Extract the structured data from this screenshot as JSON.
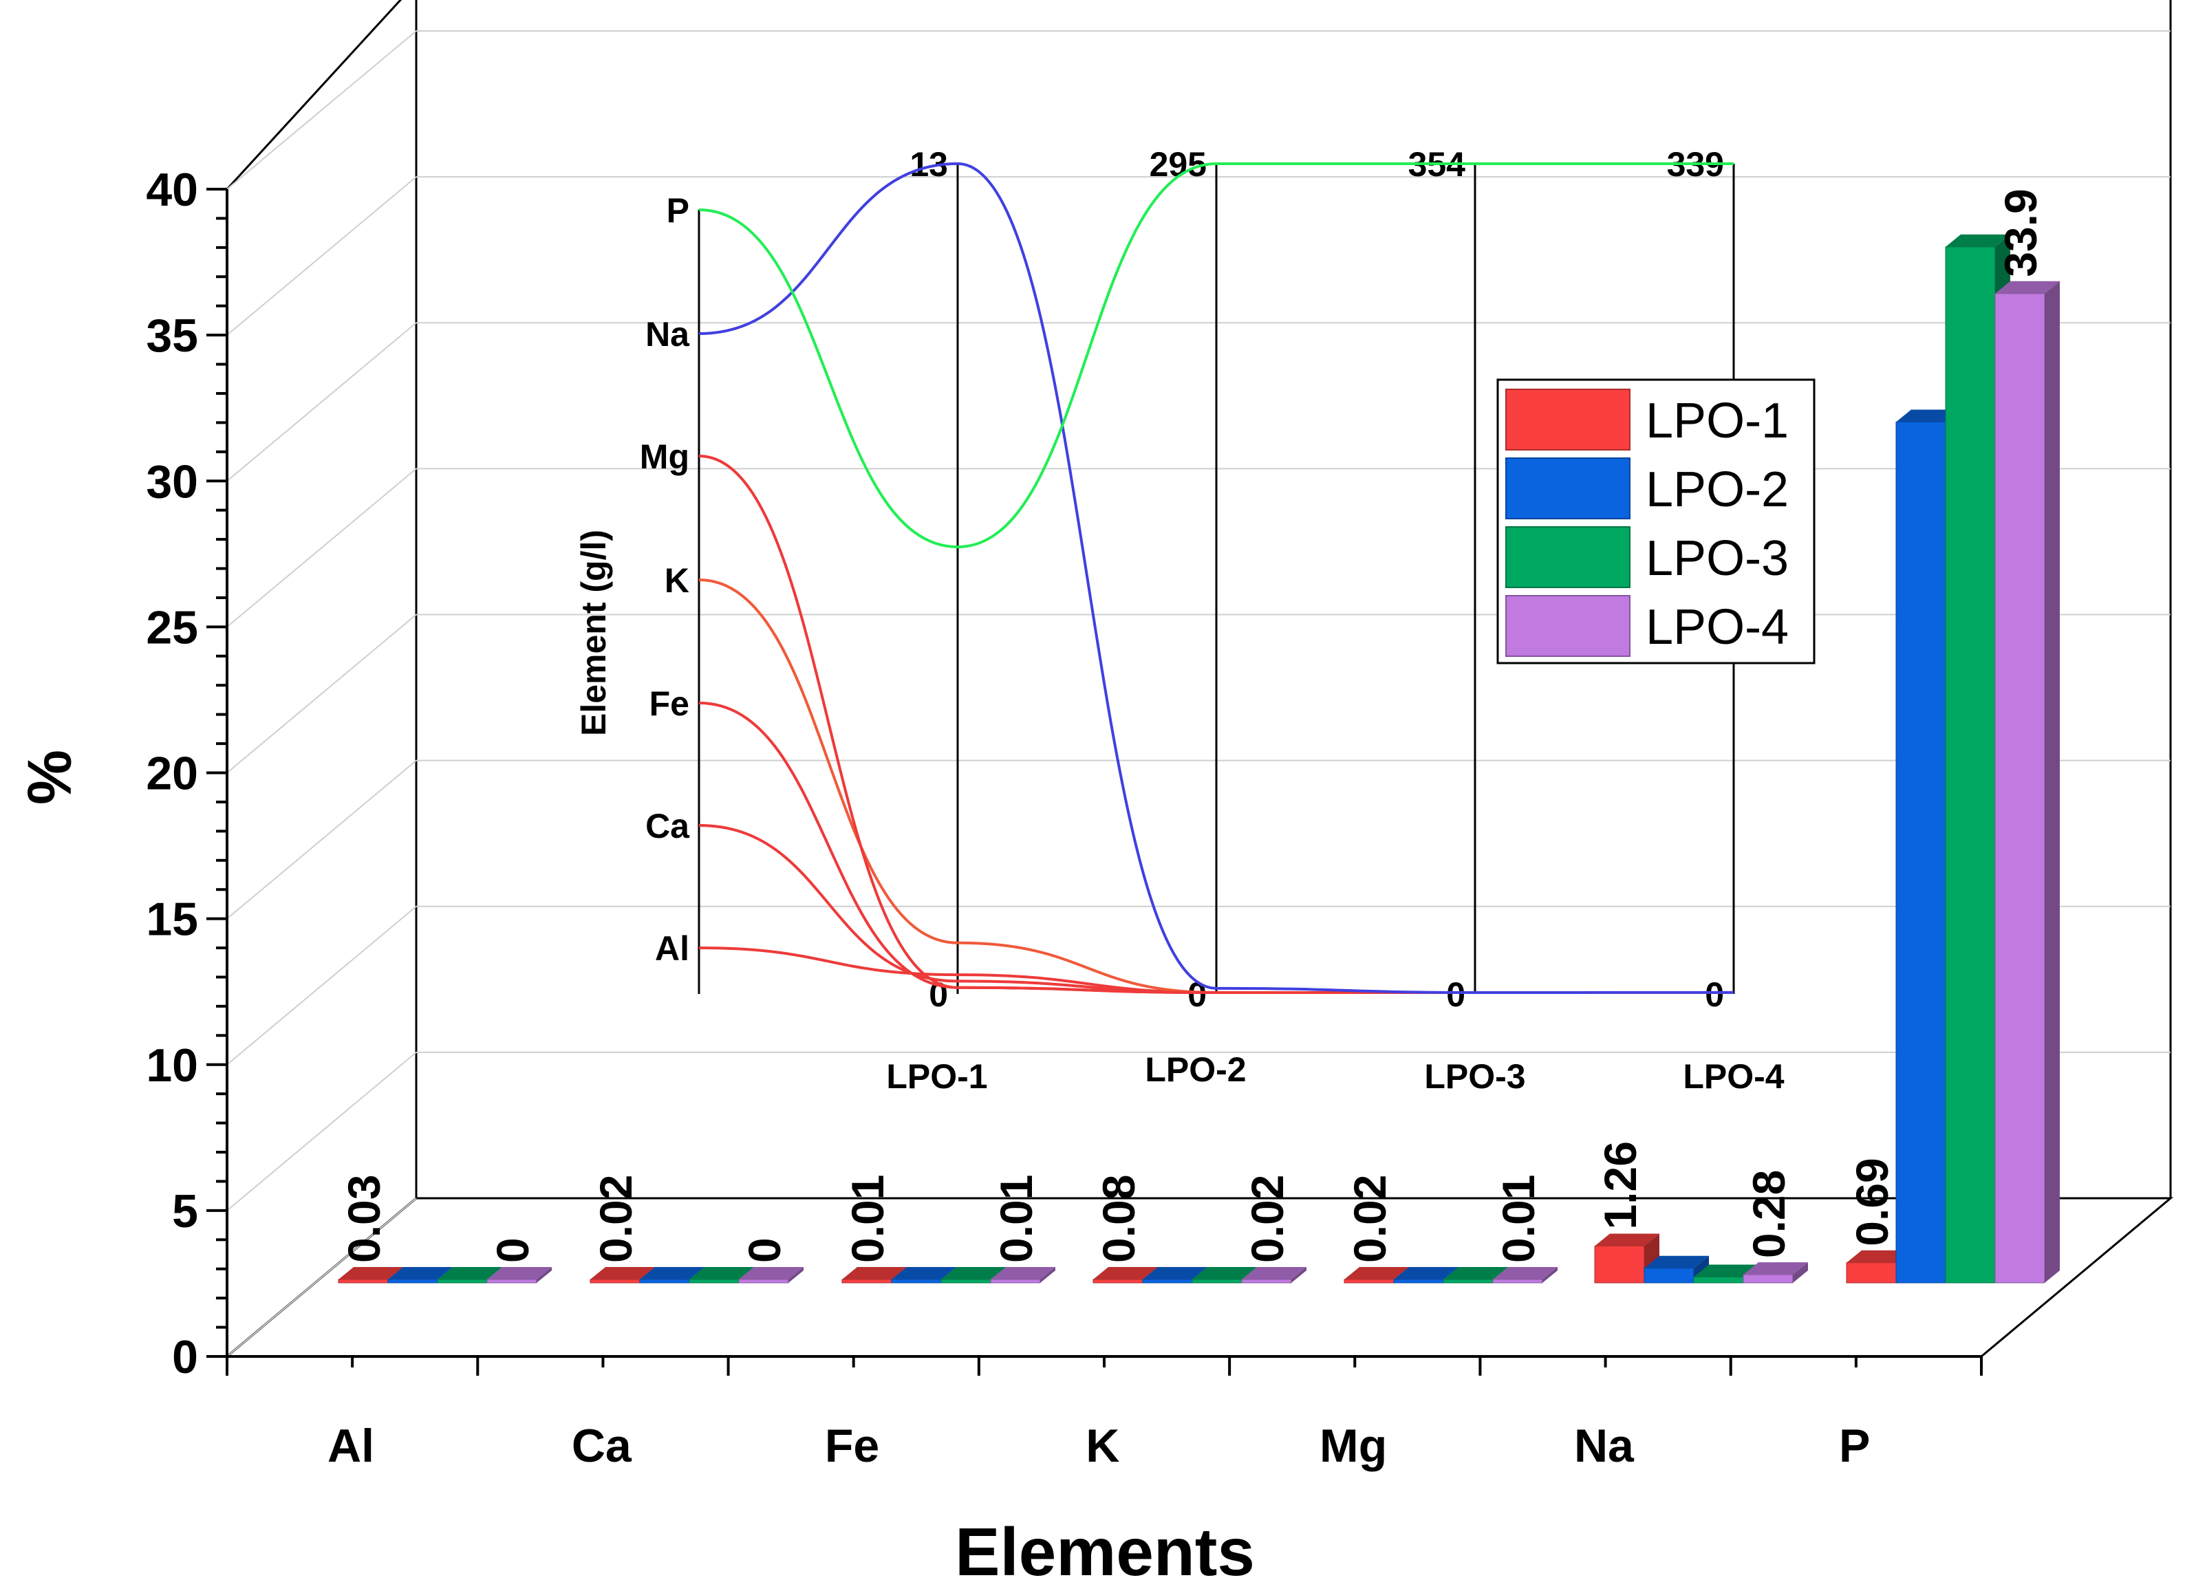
{
  "chart_data": [
    {
      "type": "bar",
      "style": "3d-clustered",
      "title": "",
      "xlabel": "Elements",
      "ylabel": "%",
      "ylim": [
        0,
        40
      ],
      "yticks": [
        "0",
        "5",
        "10",
        "15",
        "20",
        "25",
        "30",
        "35",
        "40"
      ],
      "categories": [
        "Al",
        "Ca",
        "Fe",
        "K",
        "Mg",
        "Na",
        "P"
      ],
      "series": [
        {
          "name": "LPO-1",
          "color": "#f93f3f",
          "values": [
            0.03,
            0.02,
            0.01,
            0.08,
            0.02,
            1.26,
            0.69
          ]
        },
        {
          "name": "LPO-2",
          "color": "#0a64df",
          "values": [
            0,
            0,
            0,
            0,
            0,
            0.5,
            29.5
          ]
        },
        {
          "name": "LPO-3",
          "color": "#00a862",
          "values": [
            0,
            0,
            0,
            0,
            0,
            0.2,
            35.5
          ]
        },
        {
          "name": "LPO-4",
          "color": "#c07ae0",
          "values": [
            0,
            0,
            0.01,
            0.02,
            0.01,
            0.28,
            33.9
          ]
        }
      ],
      "data_labels": [
        {
          "category": "Al",
          "series": "LPO-1",
          "text": "0.03"
        },
        {
          "category": "Al",
          "series": "LPO-4",
          "text": "0"
        },
        {
          "category": "Ca",
          "series": "LPO-1",
          "text": "0.02"
        },
        {
          "category": "Ca",
          "series": "LPO-4",
          "text": "0"
        },
        {
          "category": "Fe",
          "series": "LPO-1",
          "text": "0.01"
        },
        {
          "category": "Fe",
          "series": "LPO-4",
          "text": "0.01"
        },
        {
          "category": "K",
          "series": "LPO-1",
          "text": "0.08"
        },
        {
          "category": "K",
          "series": "LPO-4",
          "text": "0.02"
        },
        {
          "category": "Mg",
          "series": "LPO-1",
          "text": "0.02"
        },
        {
          "category": "Mg",
          "series": "LPO-4",
          "text": "0.01"
        },
        {
          "category": "Na",
          "series": "LPO-1",
          "text": "1.26"
        },
        {
          "category": "Na",
          "series": "LPO-4",
          "text": "0.28"
        },
        {
          "category": "P",
          "series": "LPO-1",
          "text": "0.69"
        },
        {
          "category": "P",
          "series": "LPO-4",
          "text": "33.9"
        }
      ],
      "legend": {
        "position": "right",
        "entries": [
          "LPO-1",
          "LPO-2",
          "LPO-3",
          "LPO-4"
        ]
      },
      "grid": true
    },
    {
      "type": "parallel-coordinates",
      "ylabel": "Element (g/l)",
      "element_axis": [
        "Al",
        "Ca",
        "Fe",
        "K",
        "Mg",
        "Na",
        "P"
      ],
      "axes": [
        {
          "name": "LPO-1",
          "max_label": "13",
          "min_label": "0",
          "max": 13
        },
        {
          "name": "LPO-2",
          "max_label": "295",
          "min_label": "0",
          "max": 295
        },
        {
          "name": "LPO-3",
          "max_label": "354",
          "min_label": "0",
          "max": 354
        },
        {
          "name": "LPO-4",
          "max_label": "339",
          "min_label": "0",
          "max": 339
        }
      ],
      "lines": [
        {
          "element": "Al",
          "color": "#ee3a3a",
          "values": [
            0.3,
            0,
            0,
            0
          ]
        },
        {
          "element": "Ca",
          "color": "#ee3a3a",
          "values": [
            0.2,
            0,
            0,
            0
          ]
        },
        {
          "element": "Fe",
          "color": "#ee3a3a",
          "values": [
            0.1,
            0,
            0,
            0
          ]
        },
        {
          "element": "K",
          "color": "#f05a3a",
          "values": [
            0.8,
            0,
            0,
            0
          ]
        },
        {
          "element": "Mg",
          "color": "#ee3a3a",
          "values": [
            0.1,
            0,
            0,
            0
          ]
        },
        {
          "element": "Na",
          "color": "#4040e0",
          "values": [
            13,
            2,
            0.3,
            0.6
          ]
        },
        {
          "element": "P",
          "color": "#22ee55",
          "values": [
            7,
            295,
            354,
            339
          ]
        }
      ]
    }
  ]
}
